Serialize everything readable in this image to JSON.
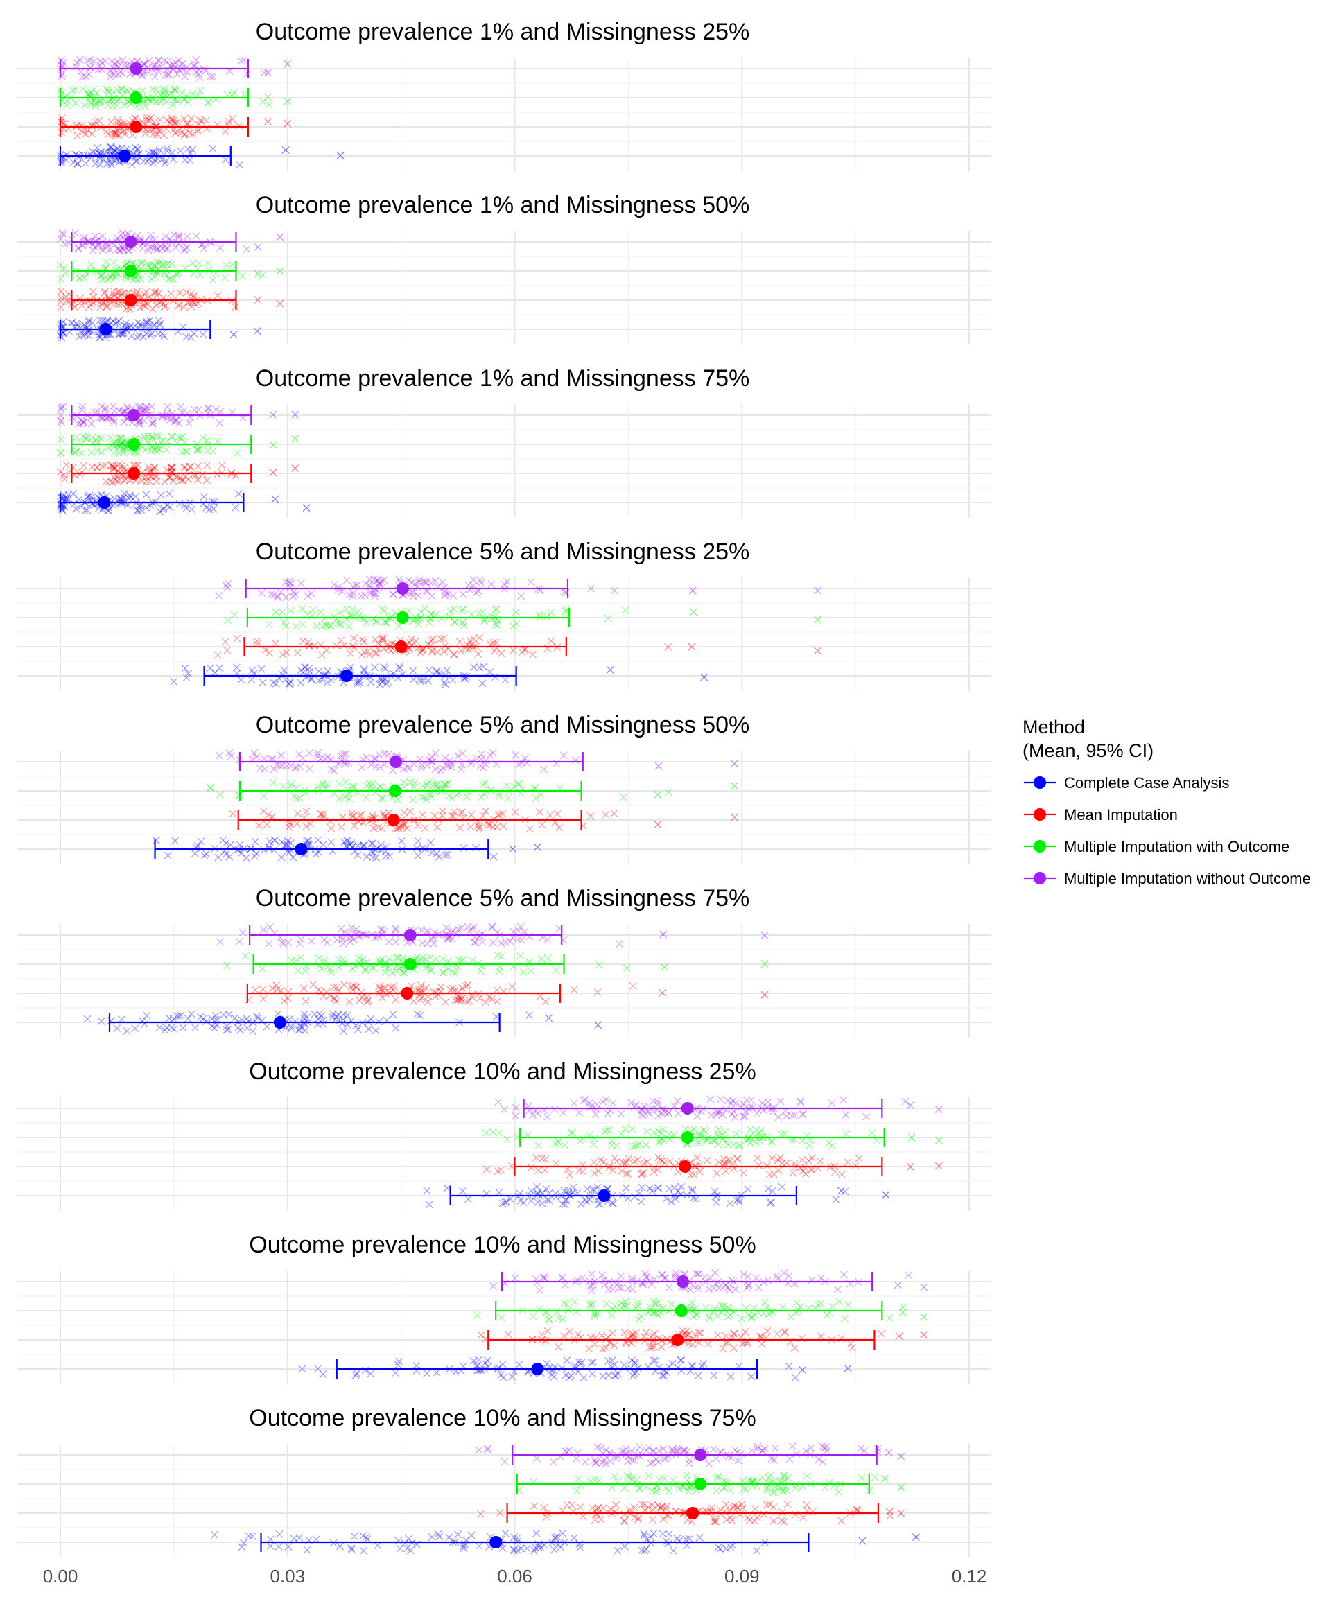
{
  "chart_data": {
    "type": "scatter",
    "xlim": [
      0,
      0.12
    ],
    "x_ticks": [
      0,
      0.03,
      0.06,
      0.09,
      0.12
    ],
    "x_tick_labels": [
      "0.00",
      "0.03",
      "0.06",
      "0.09",
      "0.12"
    ],
    "grid": true,
    "legend": {
      "title_line1": "Method",
      "title_line2": "(Mean, 95% CI)",
      "placement": "right",
      "entries": [
        {
          "name": "Complete Case Analysis",
          "color": "#0000FF"
        },
        {
          "name": "Mean Imputation",
          "color": "#FF0000"
        },
        {
          "name": "Multiple Imputation with Outcome",
          "color": "#00EE00"
        },
        {
          "name": "Multiple Imputation without Outcome",
          "color": "#A020F0"
        }
      ]
    },
    "panels": [
      {
        "title": "Outcome prevalence 1% and Missingness 25%",
        "series": [
          {
            "name": "Complete Case Analysis",
            "mean": 0.0085,
            "lower": 0.0,
            "upper": 0.0225,
            "max": 0.037
          },
          {
            "name": "Mean Imputation",
            "mean": 0.01,
            "lower": 0.0,
            "upper": 0.0248,
            "max": 0.03
          },
          {
            "name": "Multiple Imputation with Outcome",
            "mean": 0.01,
            "lower": 0.0,
            "upper": 0.0248,
            "max": 0.03
          },
          {
            "name": "Multiple Imputation without Outcome",
            "mean": 0.01,
            "lower": 0.0,
            "upper": 0.0248,
            "max": 0.03
          }
        ]
      },
      {
        "title": "Outcome prevalence 1% and Missingness 50%",
        "series": [
          {
            "name": "Complete Case Analysis",
            "mean": 0.006,
            "lower": 0.0,
            "upper": 0.0198,
            "max": 0.026
          },
          {
            "name": "Mean Imputation",
            "mean": 0.0093,
            "lower": 0.0015,
            "upper": 0.0232,
            "max": 0.029
          },
          {
            "name": "Multiple Imputation with Outcome",
            "mean": 0.0093,
            "lower": 0.0015,
            "upper": 0.0232,
            "max": 0.029
          },
          {
            "name": "Multiple Imputation without Outcome",
            "mean": 0.0093,
            "lower": 0.0015,
            "upper": 0.0232,
            "max": 0.029
          }
        ]
      },
      {
        "title": "Outcome prevalence 1% and Missingness 75%",
        "series": [
          {
            "name": "Complete Case Analysis",
            "mean": 0.0058,
            "lower": 0.0,
            "upper": 0.0242,
            "max": 0.0325
          },
          {
            "name": "Mean Imputation",
            "mean": 0.0097,
            "lower": 0.0015,
            "upper": 0.0252,
            "max": 0.031
          },
          {
            "name": "Multiple Imputation with Outcome",
            "mean": 0.0097,
            "lower": 0.0015,
            "upper": 0.0252,
            "max": 0.031
          },
          {
            "name": "Multiple Imputation without Outcome",
            "mean": 0.0097,
            "lower": 0.0015,
            "upper": 0.0252,
            "max": 0.031
          }
        ]
      },
      {
        "title": "Outcome prevalence 5% and Missingness 25%",
        "series": [
          {
            "name": "Complete Case Analysis",
            "mean": 0.0378,
            "lower": 0.019,
            "upper": 0.0602,
            "max": 0.085
          },
          {
            "name": "Mean Imputation",
            "mean": 0.045,
            "lower": 0.0243,
            "upper": 0.0668,
            "max": 0.1
          },
          {
            "name": "Multiple Imputation with Outcome",
            "mean": 0.0452,
            "lower": 0.0247,
            "upper": 0.0672,
            "max": 0.1
          },
          {
            "name": "Multiple Imputation without Outcome",
            "mean": 0.0452,
            "lower": 0.0245,
            "upper": 0.067,
            "max": 0.1
          }
        ]
      },
      {
        "title": "Outcome prevalence 5% and Missingness 50%",
        "series": [
          {
            "name": "Complete Case Analysis",
            "mean": 0.0318,
            "lower": 0.0125,
            "upper": 0.0565,
            "max": 0.063
          },
          {
            "name": "Mean Imputation",
            "mean": 0.044,
            "lower": 0.0235,
            "upper": 0.0688,
            "max": 0.089
          },
          {
            "name": "Multiple Imputation with Outcome",
            "mean": 0.0442,
            "lower": 0.0237,
            "upper": 0.0688,
            "max": 0.089
          },
          {
            "name": "Multiple Imputation without Outcome",
            "mean": 0.0443,
            "lower": 0.0237,
            "upper": 0.069,
            "max": 0.089
          }
        ]
      },
      {
        "title": "Outcome prevalence 5% and Missingness 75%",
        "series": [
          {
            "name": "Complete Case Analysis",
            "mean": 0.029,
            "lower": 0.0065,
            "upper": 0.058,
            "max": 0.071
          },
          {
            "name": "Mean Imputation",
            "mean": 0.0458,
            "lower": 0.0247,
            "upper": 0.066,
            "max": 0.093
          },
          {
            "name": "Multiple Imputation with Outcome",
            "mean": 0.0462,
            "lower": 0.0255,
            "upper": 0.0665,
            "max": 0.093
          },
          {
            "name": "Multiple Imputation without Outcome",
            "mean": 0.0462,
            "lower": 0.025,
            "upper": 0.0662,
            "max": 0.093
          }
        ]
      },
      {
        "title": "Outcome prevalence 10% and Missingness 25%",
        "series": [
          {
            "name": "Complete Case Analysis",
            "mean": 0.0718,
            "lower": 0.0515,
            "upper": 0.0972,
            "max": 0.109
          },
          {
            "name": "Mean Imputation",
            "mean": 0.0825,
            "lower": 0.06,
            "upper": 0.1085,
            "max": 0.116
          },
          {
            "name": "Multiple Imputation with Outcome",
            "mean": 0.0828,
            "lower": 0.0607,
            "upper": 0.1088,
            "max": 0.116
          },
          {
            "name": "Multiple Imputation without Outcome",
            "mean": 0.0828,
            "lower": 0.0612,
            "upper": 0.1085,
            "max": 0.116
          }
        ]
      },
      {
        "title": "Outcome prevalence 10% and Missingness 50%",
        "series": [
          {
            "name": "Complete Case Analysis",
            "mean": 0.063,
            "lower": 0.0365,
            "upper": 0.092,
            "max": 0.104
          },
          {
            "name": "Mean Imputation",
            "mean": 0.0815,
            "lower": 0.0565,
            "upper": 0.1075,
            "max": 0.114
          },
          {
            "name": "Multiple Imputation with Outcome",
            "mean": 0.082,
            "lower": 0.0575,
            "upper": 0.1085,
            "max": 0.114
          },
          {
            "name": "Multiple Imputation without Outcome",
            "mean": 0.0822,
            "lower": 0.0583,
            "upper": 0.1072,
            "max": 0.114
          }
        ]
      },
      {
        "title": "Outcome prevalence 10% and Missingness 75%",
        "series": [
          {
            "name": "Complete Case Analysis",
            "mean": 0.0575,
            "lower": 0.0265,
            "upper": 0.0988,
            "max": 0.113
          },
          {
            "name": "Mean Imputation",
            "mean": 0.0835,
            "lower": 0.059,
            "upper": 0.108,
            "max": 0.111
          },
          {
            "name": "Multiple Imputation with Outcome",
            "mean": 0.0845,
            "lower": 0.0603,
            "upper": 0.1068,
            "max": 0.111
          },
          {
            "name": "Multiple Imputation without Outcome",
            "mean": 0.0845,
            "lower": 0.0597,
            "upper": 0.1078,
            "max": 0.111
          }
        ]
      }
    ]
  }
}
